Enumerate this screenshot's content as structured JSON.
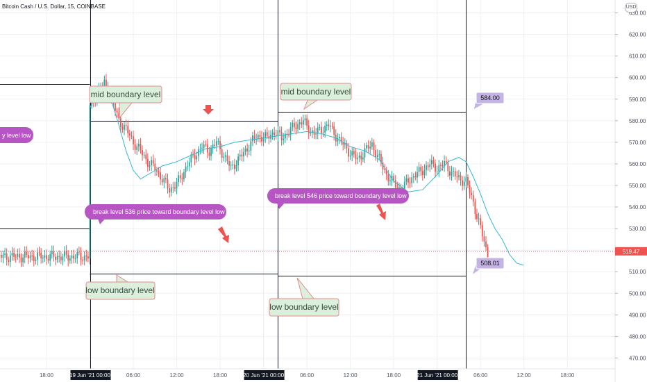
{
  "header": {
    "title": "Bitcoin Cash / U.S. Dollar, 15, COINBASE",
    "currency_button": "USD"
  },
  "colors": {
    "up": "#26a69a",
    "down": "#ef5350",
    "ma": "#32b7d6",
    "note_green": "#daf0dc",
    "note_purple": "#b755c4",
    "price_box": "#c4b4e4",
    "current_price": "#ef5350"
  },
  "chart_data": {
    "type": "candlestick",
    "title": "Bitcoin Cash / U.S. Dollar, 15, COINBASE",
    "y_axis": {
      "ticks": [
        470,
        480,
        490,
        500,
        510,
        520,
        530,
        540,
        550,
        560,
        570,
        580,
        590,
        600,
        610,
        620,
        630
      ],
      "ylim": [
        465,
        635
      ],
      "side": "right"
    },
    "x_axis": {
      "ticks": [
        "18:00",
        "19 Jun '21",
        "06:00",
        "12:00",
        "18:00",
        "20 Jun '21",
        "06:00",
        "12:00",
        "18:00",
        "21 Jun '21",
        "06:00",
        "12:00",
        "18:00"
      ],
      "highlighted": [
        "19 Jun '21",
        "20 Jun '21",
        "21 Jun '21"
      ],
      "highlighted_suffix": "00:00",
      "bar_interval_minutes": 15
    },
    "current_price": 519.47,
    "price_path": [
      [
        0,
        586
      ],
      [
        4,
        593
      ],
      [
        8,
        597
      ],
      [
        12,
        590
      ],
      [
        16,
        580
      ],
      [
        20,
        576
      ],
      [
        24,
        570
      ],
      [
        28,
        566
      ],
      [
        32,
        561
      ],
      [
        36,
        558
      ],
      [
        40,
        553
      ],
      [
        44,
        548
      ],
      [
        48,
        551
      ],
      [
        50,
        553
      ],
      [
        54,
        560
      ],
      [
        58,
        564
      ],
      [
        62,
        568
      ],
      [
        66,
        566
      ],
      [
        70,
        570
      ],
      [
        74,
        564
      ],
      [
        78,
        558
      ],
      [
        82,
        562
      ],
      [
        86,
        566
      ],
      [
        90,
        571
      ],
      [
        94,
        573
      ],
      [
        98,
        572
      ],
      [
        102,
        575
      ],
      [
        106,
        572
      ],
      [
        110,
        575
      ],
      [
        114,
        578
      ],
      [
        118,
        580
      ],
      [
        120,
        577
      ],
      [
        124,
        574
      ],
      [
        128,
        576
      ],
      [
        132,
        578
      ],
      [
        136,
        573
      ],
      [
        140,
        569
      ],
      [
        144,
        565
      ],
      [
        148,
        562
      ],
      [
        152,
        566
      ],
      [
        156,
        569
      ],
      [
        160,
        562
      ],
      [
        164,
        555
      ],
      [
        168,
        551
      ],
      [
        172,
        548
      ],
      [
        176,
        552
      ],
      [
        180,
        555
      ],
      [
        184,
        557
      ],
      [
        188,
        560
      ],
      [
        192,
        558
      ],
      [
        196,
        560
      ],
      [
        200,
        556
      ],
      [
        204,
        553
      ],
      [
        208,
        552
      ],
      [
        212,
        542
      ],
      [
        214,
        536
      ],
      [
        216,
        530
      ],
      [
        218,
        524
      ],
      [
        220,
        517
      ]
    ],
    "moving_average": [
      [
        0,
        586
      ],
      [
        4,
        592
      ],
      [
        8,
        595
      ],
      [
        12,
        589
      ],
      [
        16,
        578
      ],
      [
        20,
        566
      ],
      [
        24,
        557
      ],
      [
        28,
        553
      ],
      [
        32,
        555
      ],
      [
        36,
        557
      ],
      [
        40,
        559
      ],
      [
        48,
        561
      ],
      [
        56,
        564
      ],
      [
        64,
        567
      ],
      [
        72,
        568
      ],
      [
        80,
        570
      ],
      [
        88,
        571
      ],
      [
        96,
        572
      ],
      [
        104,
        573
      ],
      [
        112,
        574
      ],
      [
        120,
        575
      ],
      [
        128,
        574
      ],
      [
        136,
        572
      ],
      [
        144,
        568
      ],
      [
        152,
        566
      ],
      [
        160,
        562
      ],
      [
        168,
        552
      ],
      [
        176,
        547
      ],
      [
        184,
        548
      ],
      [
        192,
        555
      ],
      [
        198,
        561
      ],
      [
        204,
        563
      ],
      [
        208,
        561
      ],
      [
        212,
        554
      ],
      [
        216,
        546
      ],
      [
        220,
        537
      ],
      [
        224,
        530
      ],
      [
        228,
        525
      ],
      [
        232,
        518
      ],
      [
        236,
        514
      ],
      [
        240,
        513
      ]
    ],
    "horizontal_levels": [
      {
        "price": 597,
        "from": -200,
        "to": 0
      },
      {
        "price": 580,
        "from": 0,
        "to": 104
      },
      {
        "price": 530,
        "from": -200,
        "to": 0
      },
      {
        "price": 509,
        "from": 0,
        "to": 104
      },
      {
        "price": 584,
        "from": 104,
        "to": 208
      },
      {
        "price": 508,
        "from": 104,
        "to": 208
      }
    ],
    "vertical_markers": [
      "19 Jun '21",
      "20 Jun '21",
      "21 Jun '21"
    ],
    "annotations": {
      "mid_boundary_1": "mid boundary level",
      "mid_boundary_2": "mid boundary level",
      "low_boundary_1": "low boundary level",
      "low_boundary_2": "low boundary level",
      "break_536": "break level 536 price toward  boundary level low",
      "break_546": "break level  546 price toward  boundary level low",
      "boundary_low_partial": "y level low",
      "price_label_584": "584.00",
      "price_label_508": "508.01",
      "current_price_label": "519.47"
    }
  }
}
